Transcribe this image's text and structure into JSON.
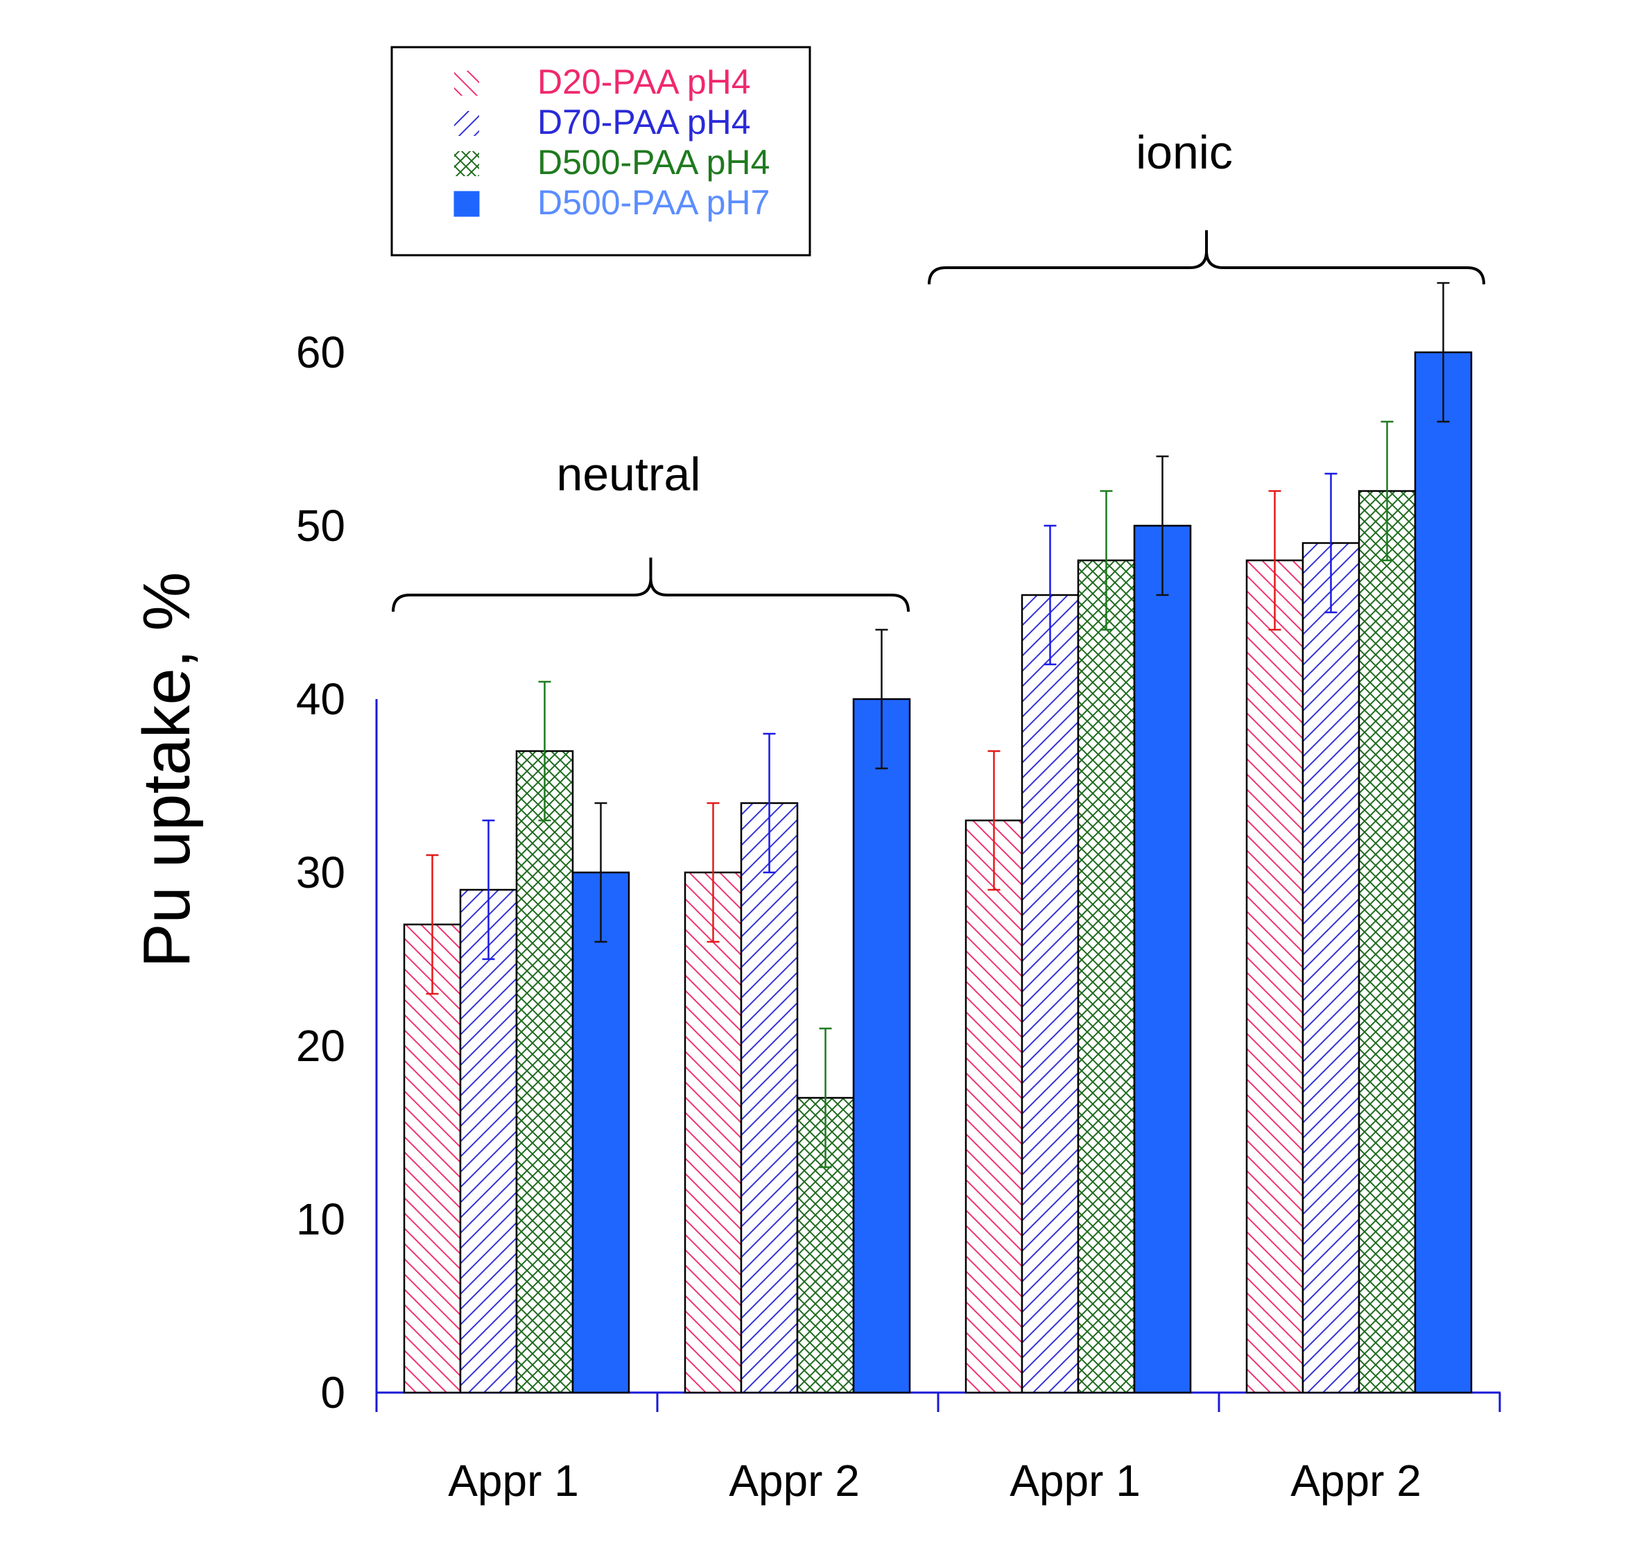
{
  "chart_data": {
    "type": "bar",
    "title": "",
    "xlabel": "",
    "ylabel": "Pu uptake,  %",
    "ylim": [
      0,
      60
    ],
    "yticks": [
      "0",
      "10",
      "20",
      "30",
      "40",
      "50",
      "60"
    ],
    "grid": false,
    "legend_position": "top-left",
    "categories": [
      "Appr 1",
      "Appr 2",
      "Appr 1",
      "Appr 2"
    ],
    "groups": [
      {
        "label": "neutral",
        "categories": [
          0,
          1
        ]
      },
      {
        "label": "ionic",
        "categories": [
          2,
          3
        ]
      }
    ],
    "series": [
      {
        "name": "D20-PAA pH4",
        "pattern": "hatch-backslash",
        "color": "#ee3370",
        "error_color": "#e51a1a",
        "values": [
          27,
          30,
          33,
          48
        ],
        "errors": [
          4,
          4,
          4,
          4
        ]
      },
      {
        "name": "D70-PAA pH4",
        "pattern": "hatch-slash",
        "color": "#3333d6",
        "error_color": "#1a1ae6",
        "values": [
          29,
          34,
          46,
          49
        ],
        "errors": [
          4,
          4,
          4,
          4
        ]
      },
      {
        "name": "D500-PAA pH4",
        "pattern": "crosshatch",
        "color": "#1f6b1f",
        "error_color": "#1f7a1f",
        "values": [
          37,
          17,
          48,
          52
        ],
        "errors": [
          4,
          4,
          4,
          4
        ]
      },
      {
        "name": "D500-PAA pH7",
        "pattern": "solid",
        "color": "#1f66ff",
        "error_color": "#111111",
        "values": [
          30,
          40,
          50,
          60
        ],
        "errors": [
          4,
          4,
          4,
          4
        ]
      }
    ],
    "legend_text_colors": [
      "#f0286e",
      "#2a2ad8",
      "#1f7a1f",
      "#5b8dff"
    ]
  }
}
